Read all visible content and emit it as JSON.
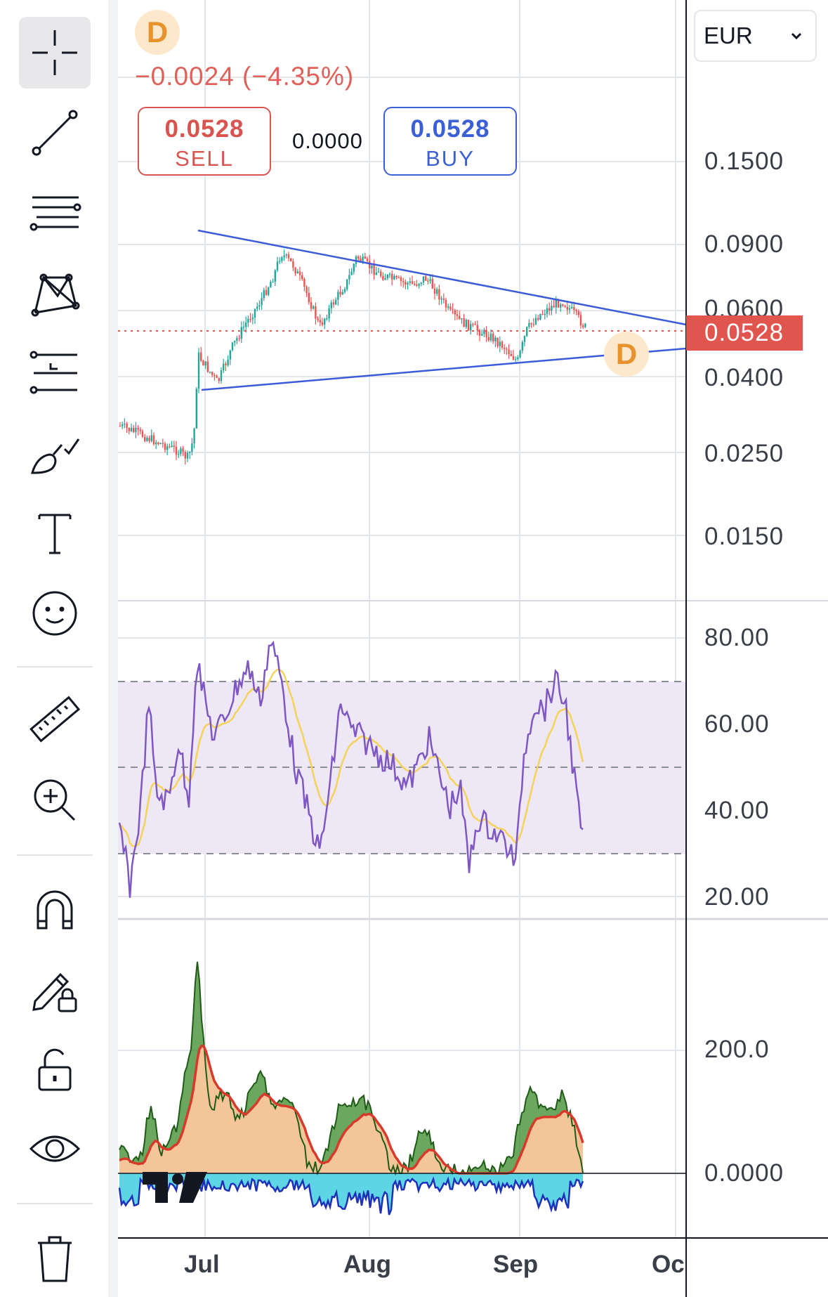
{
  "toolbar": {
    "tools": [
      {
        "name": "crosshair",
        "active": true
      },
      {
        "name": "trend-line"
      },
      {
        "name": "fib-retracement"
      },
      {
        "name": "patterns"
      },
      {
        "name": "long-position"
      },
      {
        "name": "brush"
      },
      {
        "name": "text"
      },
      {
        "name": "emoji"
      },
      {
        "name": "ruler"
      },
      {
        "name": "zoom-in"
      },
      {
        "name": "magnet"
      },
      {
        "name": "lock-drawings"
      },
      {
        "name": "lock-all"
      },
      {
        "name": "hide"
      },
      {
        "name": "trash"
      }
    ]
  },
  "header": {
    "symbol_badge": "D",
    "change": "−0.0024 (−4.35%)",
    "sell": {
      "price": "0.0528",
      "label": "SELL"
    },
    "spread": "0.0000",
    "buy": {
      "price": "0.0528",
      "label": "BUY"
    },
    "currency": "EUR"
  },
  "price_axis": {
    "labels": [
      "0.1500",
      "0.0900",
      "0.0600",
      "0.0400",
      "0.0250",
      "0.0150"
    ],
    "current_price": "0.0528"
  },
  "event_badge": "D",
  "rsi_axis": {
    "labels": [
      "80.00",
      "60.00",
      "40.00",
      "20.00"
    ]
  },
  "volume_axis": {
    "labels": [
      "200.0",
      "0.0000"
    ]
  },
  "time_axis": {
    "labels": [
      "Jul",
      "Aug",
      "Sep",
      "Oc"
    ]
  },
  "colors": {
    "up": "#26a69a",
    "down": "#ef5350",
    "trendline": "#3b5bd9",
    "price_tag": "#e1554f",
    "rsi_line": "#7e57c2",
    "rsi_ma": "#f5d35b",
    "rsi_band": "#ede7f6",
    "osc_fill": "#f5c59a",
    "osc_green": "#3a8a2a",
    "osc_red": "#d73a2a",
    "osc_cyan": "#4dd0e1",
    "osc_blue": "#1e2fb8"
  }
}
